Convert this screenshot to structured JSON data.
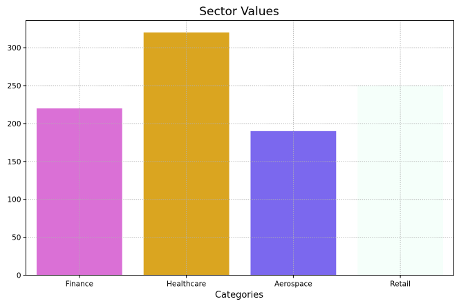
{
  "chart_data": {
    "type": "bar",
    "title": "Sector Values",
    "xlabel": "Categories",
    "ylabel": "",
    "categories": [
      "Finance",
      "Healthcare",
      "Aerospace",
      "Retail"
    ],
    "values": [
      220,
      320,
      190,
      250
    ],
    "colors": [
      "#da70d6",
      "#daa520",
      "#7b68ee",
      "#f5fffa"
    ],
    "ylim": [
      0,
      336
    ],
    "yticks": [
      0,
      50,
      100,
      150,
      200,
      250,
      300
    ],
    "grid": true,
    "legend": "none"
  }
}
